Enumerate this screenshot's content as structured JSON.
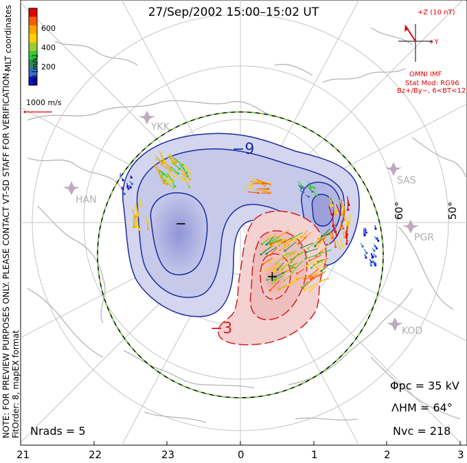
{
  "title": "27/Sep/2002 15:00–15:02 UT",
  "colorbar": {
    "ticks": [
      "600",
      "400",
      "200"
    ],
    "label": "Vel [m/s]",
    "colors": [
      "#e00000",
      "#ff5a00",
      "#ffa500",
      "#ffd000",
      "#9acd32",
      "#32cd32",
      "#2e8b57",
      "#3070d0",
      "#1010d0"
    ]
  },
  "coordinates_label": "MLT coordinates",
  "scale_label": "1000 m/s",
  "side_note": "NOTE: FOR PREVIEW PURPOSES ONLY. PLEASE CONTACT VT-SD STAFF FOR VERIFICATION.",
  "fit_order": "FitOrder: 8, mapEX format",
  "imf": {
    "z_label": "+Z (10 nT)",
    "y_label": "+Y",
    "source": "OMNI IMF",
    "stat_mod": "Stat Mod: RG96",
    "condition": "Bz+/By−, 6<BT<12"
  },
  "stations": [
    "YKK",
    "HAN",
    "SAS",
    "PGR",
    "KOD"
  ],
  "lat_labels": [
    "60°",
    "50°"
  ],
  "contour_labels": [
    "−9",
    "−3"
  ],
  "potential_marks": [
    "−",
    "+"
  ],
  "stats": {
    "phi_pc": "Φpc = 35 kV",
    "lambda_hm": "ΛHM = 64°",
    "n_vc": "Nvc = 218",
    "n_rads": "Nrads = 5"
  },
  "mlt_ticks": [
    "21",
    "22",
    "23",
    "0",
    "1",
    "2",
    "3"
  ],
  "colors": {
    "negative_fill": "#d4d6ef",
    "negative_line": "#1a2aa0",
    "positive_fill": "#f4d2d2",
    "positive_line": "#d21e1e",
    "hmb_dash": "#7ec850",
    "coastline": "#b5b5b5",
    "grid": "#c4c4c4"
  }
}
